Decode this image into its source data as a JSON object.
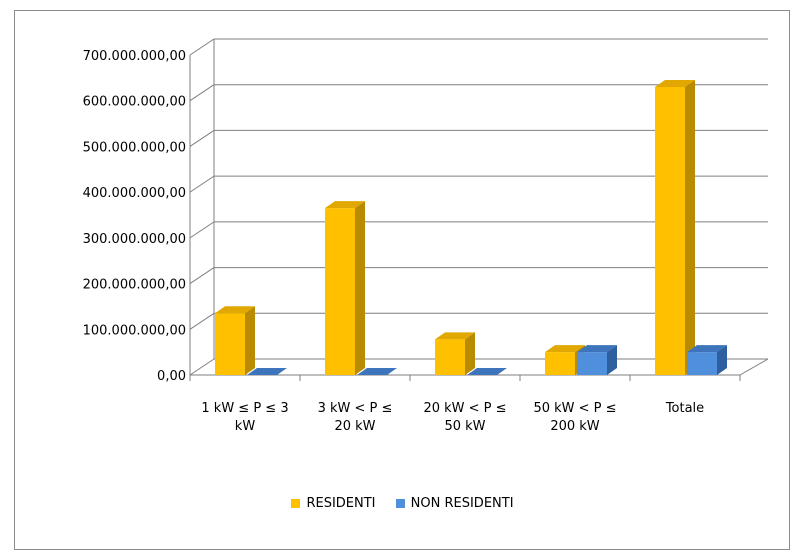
{
  "chart_data": {
    "type": "bar",
    "categories": [
      "1 kW ≤ P ≤ 3\nkW",
      "3 kW < P ≤\n20 kW",
      "20 kW < P ≤\n50 kW",
      "50 kW < P ≤\n200 kW",
      "Totale"
    ],
    "series": [
      {
        "name": "RESIDENTI",
        "values": [
          135000000,
          365000000,
          78000000,
          50000000,
          630000000
        ]
      },
      {
        "name": "NON RESIDENTI",
        "values": [
          0,
          0,
          0,
          50000000,
          50000000
        ]
      }
    ],
    "y_ticks": [
      "0,00",
      "100.000.000,00",
      "200.000.000,00",
      "300.000.000,00",
      "400.000.000,00",
      "500.000.000,00",
      "600.000.000,00",
      "700.000.000,00"
    ],
    "ylim": [
      0,
      700000000
    ],
    "title": "",
    "xlabel": "",
    "ylabel": "",
    "grid": true,
    "legend_position": "bottom",
    "colors": {
      "RESIDENTI": {
        "front": "#FFC000",
        "side": "#B88B00",
        "top": "#E0A800"
      },
      "NON RESIDENTI": {
        "front": "#4F8FDC",
        "side": "#2E5F9E",
        "top": "#3D74BC"
      }
    }
  }
}
